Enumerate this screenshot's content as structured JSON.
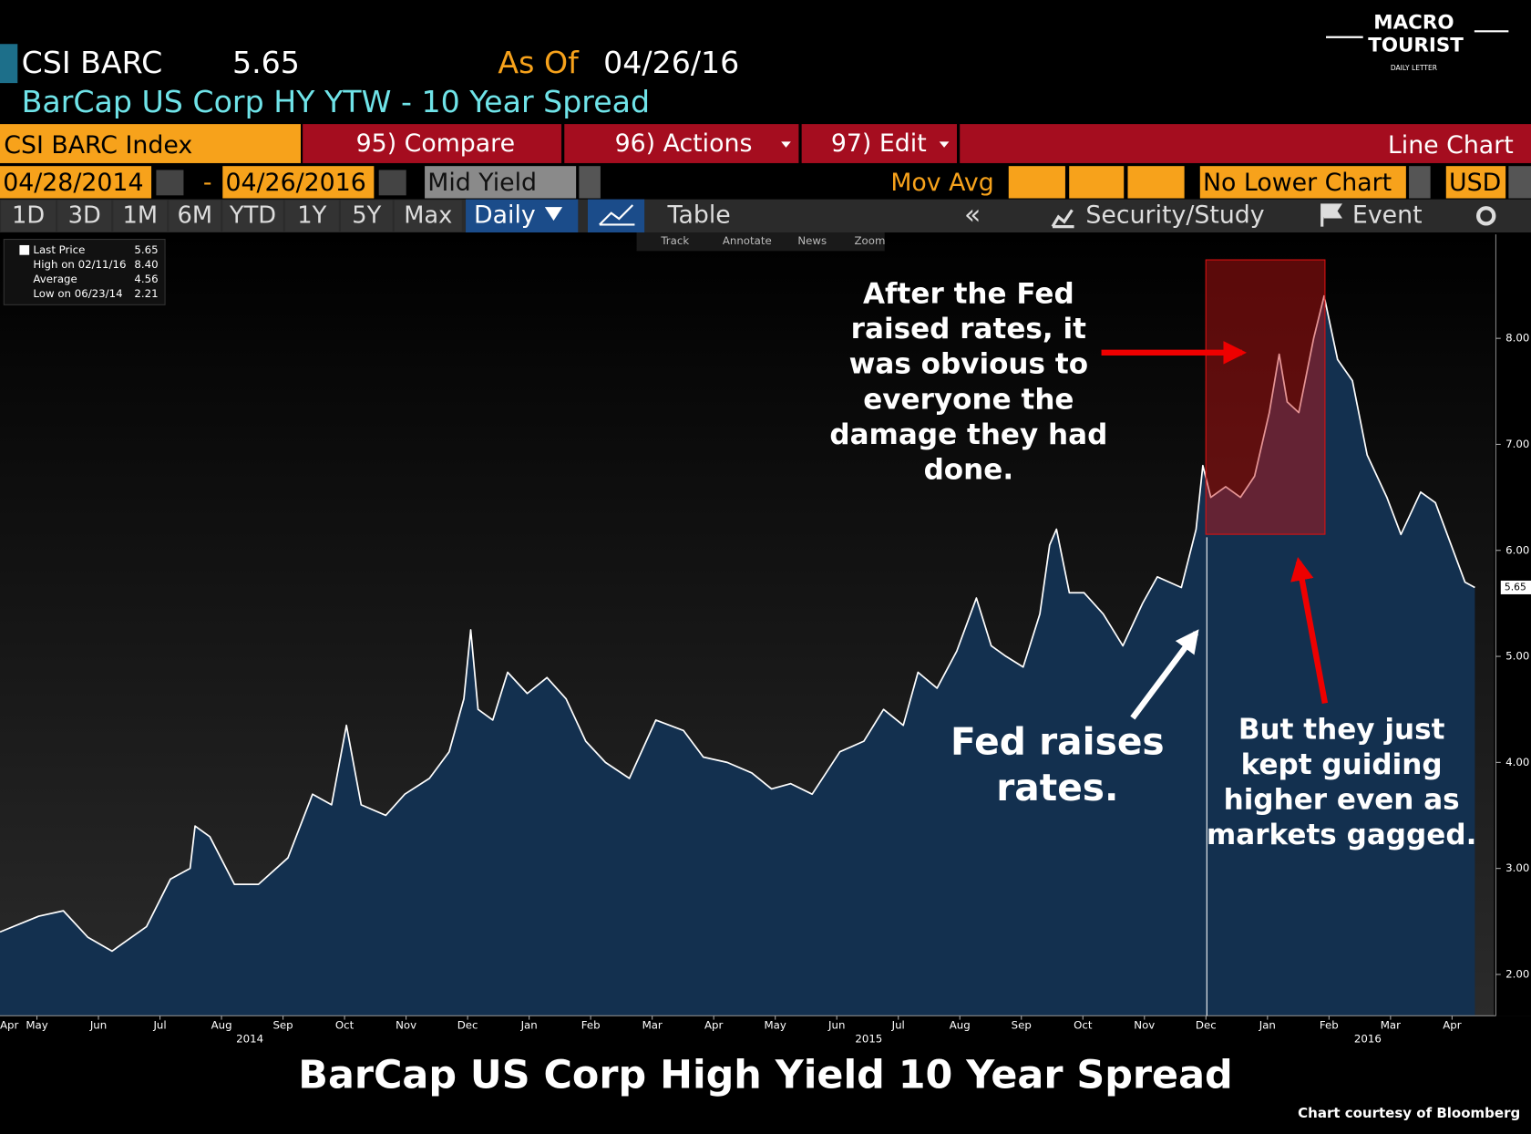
{
  "header": {
    "ticker": "CSI BARC",
    "price": "5.65",
    "as_of_label": "As Of",
    "as_of_date": "04/26/16",
    "subtitle": "BarCap US Corp HY YTW - 10 Year Spread",
    "logo": [
      "MACRO",
      "TOURIST",
      "DAILY LETTER"
    ]
  },
  "toolbar": {
    "index": "CSI BARC Index",
    "compare": "95) Compare",
    "actions": "96) Actions",
    "edit": "97) Edit",
    "chart_kind": "Line Chart",
    "start_date": "04/28/2014",
    "dash": "-",
    "end_date": "04/26/2016",
    "field": "Mid Yield",
    "mov_avg": "Mov Avg",
    "lower_chart": "No Lower Chart",
    "currency": "USD",
    "periods": [
      "1D",
      "3D",
      "1M",
      "6M",
      "YTD",
      "1Y",
      "5Y",
      "Max"
    ],
    "frequency": "Daily",
    "table": "Table",
    "security_study": "Security/Study",
    "event": "Event",
    "tools": [
      "Track",
      "Annotate",
      "News",
      "Zoom"
    ]
  },
  "chart_data": {
    "type": "line",
    "title": "BarCap US Corp High Yield 10 Year Spread",
    "credit": "Chart courtesy of Bloomberg",
    "legend": [
      {
        "label": "Last Price",
        "value": "5.65"
      },
      {
        "label": "High on 02/11/16",
        "value": "8.40"
      },
      {
        "label": "Average",
        "value": "4.56"
      },
      {
        "label": "Low on 06/23/14",
        "value": "2.21"
      }
    ],
    "last_price_tag": "5.65",
    "series": [
      {
        "name": "Last Price",
        "color": "#ffffff",
        "fill": "#13304f",
        "x": [
          0.4,
          1.03,
          1.43,
          1.83,
          2.22,
          2.78,
          3.17,
          3.49,
          3.57,
          3.81,
          4.21,
          4.6,
          5.08,
          5.48,
          5.79,
          6.03,
          6.27,
          6.67,
          6.98,
          7.38,
          7.7,
          7.94,
          8.05,
          8.17,
          8.41,
          8.65,
          8.97,
          9.29,
          9.6,
          9.92,
          10.24,
          10.63,
          11.06,
          11.51,
          11.83,
          12.22,
          12.62,
          12.94,
          13.25,
          13.6,
          14.05,
          14.44,
          14.76,
          15.08,
          15.32,
          15.63,
          15.95,
          16.27,
          16.51,
          16.75,
          17.03,
          17.3,
          17.46,
          17.57,
          17.78,
          18.02,
          18.33,
          18.65,
          18.97,
          19.21,
          19.6,
          19.84,
          19.95,
          20.08,
          20.32,
          20.56,
          20.79,
          21.03,
          21.19,
          21.32,
          21.51,
          21.75,
          21.92,
          22.14,
          22.38,
          22.62,
          22.94,
          23.17,
          23.49,
          23.73,
          24.05,
          24.21,
          24.37
        ],
        "values": [
          2.4,
          2.55,
          2.6,
          2.35,
          2.22,
          2.45,
          2.9,
          3.0,
          3.4,
          3.3,
          2.85,
          2.85,
          3.1,
          3.7,
          3.6,
          4.35,
          3.6,
          3.5,
          3.7,
          3.85,
          4.1,
          4.6,
          5.25,
          4.5,
          4.4,
          4.85,
          4.65,
          4.8,
          4.6,
          4.2,
          4.0,
          3.85,
          4.4,
          4.3,
          4.05,
          4.0,
          3.9,
          3.75,
          3.8,
          3.7,
          4.1,
          4.2,
          4.5,
          4.35,
          4.85,
          4.7,
          5.05,
          5.55,
          5.1,
          5.0,
          4.9,
          5.4,
          6.05,
          6.2,
          5.6,
          5.6,
          5.4,
          5.1,
          5.5,
          5.75,
          5.65,
          6.2,
          6.8,
          6.5,
          6.6,
          6.5,
          6.7,
          7.3,
          7.85,
          7.4,
          7.3,
          8.0,
          8.4,
          7.8,
          7.6,
          6.9,
          6.5,
          6.15,
          6.55,
          6.45,
          5.95,
          5.7,
          5.65
        ]
      }
    ],
    "xlim": [
      0.4,
      24.68
    ],
    "xticks": [
      {
        "value": 0,
        "label": "Apr"
      },
      {
        "value": 1,
        "label": "May"
      },
      {
        "value": 2,
        "label": "Jun"
      },
      {
        "value": 3,
        "label": "Jul"
      },
      {
        "value": 4,
        "label": "Aug"
      },
      {
        "value": 5,
        "label": "Sep"
      },
      {
        "value": 6,
        "label": "Oct"
      },
      {
        "value": 7,
        "label": "Nov"
      },
      {
        "value": 8,
        "label": "Dec"
      },
      {
        "value": 9,
        "label": "Jan"
      },
      {
        "value": 10,
        "label": "Feb"
      },
      {
        "value": 11,
        "label": "Mar"
      },
      {
        "value": 12,
        "label": "Apr"
      },
      {
        "value": 13,
        "label": "May"
      },
      {
        "value": 14,
        "label": "Jun"
      },
      {
        "value": 15,
        "label": "Jul"
      },
      {
        "value": 16,
        "label": "Aug"
      },
      {
        "value": 17,
        "label": "Sep"
      },
      {
        "value": 18,
        "label": "Oct"
      },
      {
        "value": 19,
        "label": "Nov"
      },
      {
        "value": 20,
        "label": "Dec"
      },
      {
        "value": 21,
        "label": "Jan"
      },
      {
        "value": 22,
        "label": "Feb"
      },
      {
        "value": 23,
        "label": "Mar"
      },
      {
        "value": 24,
        "label": "Apr"
      }
    ],
    "year_labels": [
      {
        "value": 4.46,
        "label": "2014"
      },
      {
        "value": 14.52,
        "label": "2015"
      },
      {
        "value": 22.63,
        "label": "2016"
      }
    ],
    "ylim": [
      1.61,
      8.98
    ],
    "yticks": [
      {
        "value": 2,
        "label": "2.00"
      },
      {
        "value": 3,
        "label": "3.00"
      },
      {
        "value": 4,
        "label": "4.00"
      },
      {
        "value": 5,
        "label": "5.00"
      },
      {
        "value": 6,
        "label": "6.00"
      },
      {
        "value": 7,
        "label": "7.00"
      },
      {
        "value": 8,
        "label": "8.00"
      }
    ],
    "annotations": {
      "fed_raises": [
        "Fed raises",
        "rates."
      ],
      "after_fed": [
        "After the Fed",
        "raised rates, it",
        "was obvious to",
        "everyone the",
        "damage they had",
        "done."
      ],
      "kept_guiding": [
        "But they just",
        "kept guiding",
        "higher even as",
        "markets gagged."
      ]
    }
  }
}
